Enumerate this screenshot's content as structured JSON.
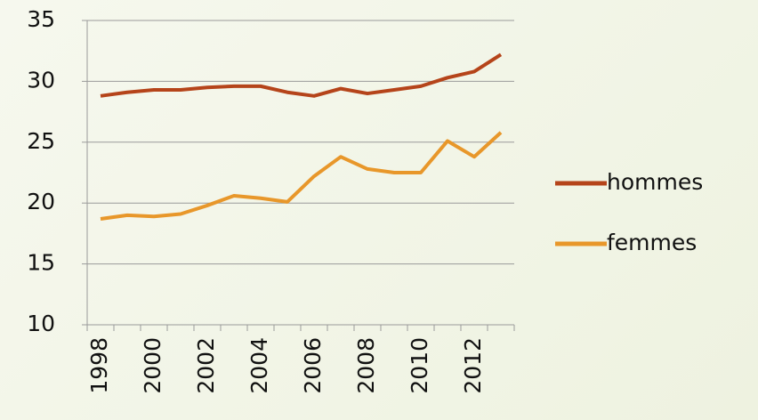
{
  "chart_data": {
    "type": "line",
    "categories": [
      "1998",
      null,
      "2000",
      null,
      "2002",
      null,
      "2004",
      null,
      "2006",
      null,
      "2008",
      null,
      "2010",
      null,
      "2012",
      null
    ],
    "series": [
      {
        "name": "hommes",
        "color": "#b5441a",
        "values": [
          28.8,
          29.1,
          29.3,
          29.3,
          29.5,
          29.6,
          29.6,
          29.1,
          28.8,
          29.4,
          29.0,
          29.3,
          29.6,
          30.3,
          30.8,
          32.2
        ]
      },
      {
        "name": "femmes",
        "color": "#e8972a",
        "values": [
          18.7,
          19.0,
          18.9,
          19.1,
          19.8,
          20.6,
          20.4,
          20.1,
          22.2,
          23.8,
          22.8,
          22.5,
          22.5,
          25.1,
          23.8,
          25.8
        ]
      }
    ],
    "ylim": [
      10,
      35
    ],
    "yticks": [
      10,
      15,
      20,
      25,
      30,
      35
    ],
    "grid": true,
    "legend": "right"
  }
}
